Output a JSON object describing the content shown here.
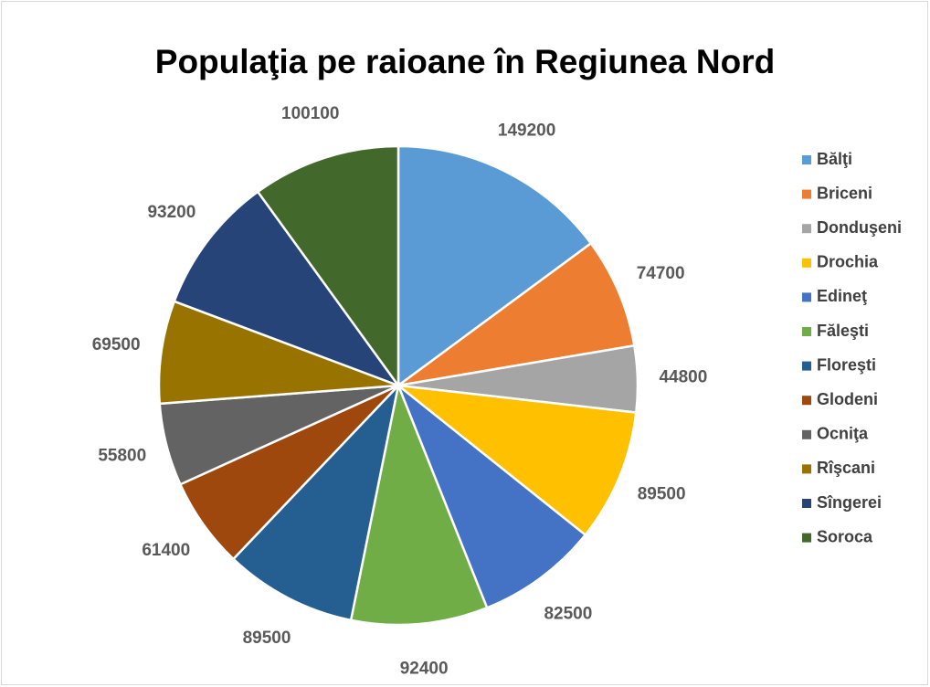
{
  "chart_data": {
    "type": "pie",
    "title": "Populaţia pe raioane în Regiunea Nord",
    "categories": [
      "Bălţi",
      "Briceni",
      "Donduşeni",
      "Drochia",
      "Edineţ",
      "Făleşti",
      "Floreşti",
      "Glodeni",
      "Ocniţa",
      "Rîşcani",
      "Sîngerei",
      "Soroca"
    ],
    "values": [
      149200,
      74700,
      44800,
      89500,
      82500,
      92400,
      89500,
      61400,
      55800,
      69500,
      93200,
      100100
    ],
    "colors": [
      "#5b9bd5",
      "#ed7d31",
      "#a5a5a5",
      "#ffc000",
      "#4472c4",
      "#70ad47",
      "#255e91",
      "#9e480e",
      "#636363",
      "#997300",
      "#264478",
      "#43682b"
    ],
    "legend": "right"
  }
}
